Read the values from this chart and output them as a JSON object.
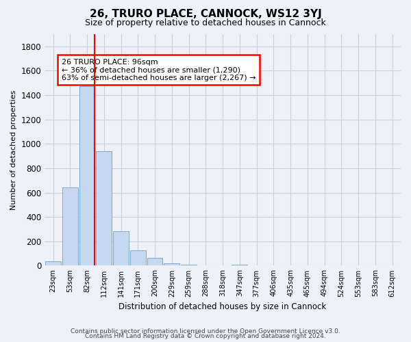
{
  "title": "26, TRURO PLACE, CANNOCK, WS12 3YJ",
  "subtitle": "Size of property relative to detached houses in Cannock",
  "xlabel": "Distribution of detached houses by size in Cannock",
  "ylabel": "Number of detached properties",
  "bar_color": "#c5d8f0",
  "bar_edge_color": "#7aaad0",
  "categories": [
    "23sqm",
    "53sqm",
    "82sqm",
    "112sqm",
    "141sqm",
    "171sqm",
    "200sqm",
    "229sqm",
    "259sqm",
    "288sqm",
    "318sqm",
    "347sqm",
    "377sqm",
    "406sqm",
    "435sqm",
    "465sqm",
    "494sqm",
    "524sqm",
    "553sqm",
    "583sqm",
    "612sqm"
  ],
  "values": [
    38,
    645,
    1475,
    938,
    283,
    128,
    65,
    22,
    10,
    0,
    0,
    10,
    0,
    0,
    0,
    0,
    0,
    0,
    0,
    0,
    0
  ],
  "ylim": [
    0,
    1900
  ],
  "yticks": [
    0,
    200,
    400,
    600,
    800,
    1000,
    1200,
    1400,
    1600,
    1800
  ],
  "red_line_index": 2,
  "annotation_text": "26 TRURO PLACE: 96sqm\n← 36% of detached houses are smaller (1,290)\n63% of semi-detached houses are larger (2,267) →",
  "footer_line1": "Contains HM Land Registry data © Crown copyright and database right 2024.",
  "footer_line2": "Contains public sector information licensed under the Open Government Licence v3.0.",
  "background_color": "#eef2f8",
  "grid_color": "#c8d0dc"
}
